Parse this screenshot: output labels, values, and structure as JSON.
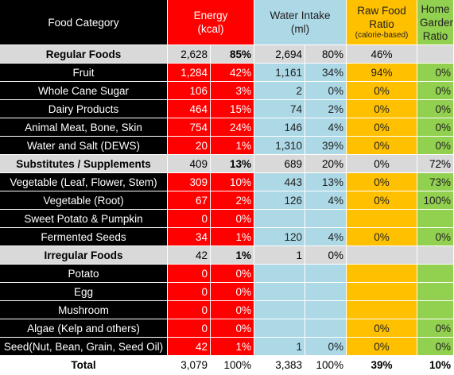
{
  "headers": {
    "category": "Food Category",
    "energy": "Energy",
    "energy_unit": "(kcal)",
    "water": "Water Intake",
    "water_unit": "(ml)",
    "raw": "Raw Food Ratio",
    "raw_note": "(calorie-based)",
    "garden": "Home Garden Ratio"
  },
  "rows": [
    {
      "name": "Regular Foods",
      "type": "group",
      "energy": "2,628",
      "energy_pct": "85%",
      "water": "2,694",
      "water_pct": "80%",
      "raw": "46%",
      "garden": ""
    },
    {
      "name": "Fruit",
      "type": "item",
      "energy": "1,284",
      "energy_pct": "42%",
      "water": "1,161",
      "water_pct": "34%",
      "raw": "94%",
      "garden": "0%"
    },
    {
      "name": "Whole Cane Sugar",
      "type": "item",
      "energy": "106",
      "energy_pct": "3%",
      "water": "2",
      "water_pct": "0%",
      "raw": "0%",
      "garden": "0%"
    },
    {
      "name": "Dairy Products",
      "type": "item",
      "energy": "464",
      "energy_pct": "15%",
      "water": "74",
      "water_pct": "2%",
      "raw": "0%",
      "garden": "0%"
    },
    {
      "name": "Animal Meat, Bone, Skin",
      "type": "item",
      "energy": "754",
      "energy_pct": "24%",
      "water": "146",
      "water_pct": "4%",
      "raw": "0%",
      "garden": "0%"
    },
    {
      "name": "Water and Salt (DEWS)",
      "type": "item",
      "energy": "20",
      "energy_pct": "1%",
      "water": "1,310",
      "water_pct": "39%",
      "raw": "0%",
      "garden": "0%"
    },
    {
      "name": "Substitutes / Supplements",
      "type": "group",
      "energy": "409",
      "energy_pct": "13%",
      "water": "689",
      "water_pct": "20%",
      "raw": "0%",
      "garden": "72%"
    },
    {
      "name": "Vegetable (Leaf, Flower, Stem)",
      "type": "item",
      "energy": "309",
      "energy_pct": "10%",
      "water": "443",
      "water_pct": "13%",
      "raw": "0%",
      "garden": "73%"
    },
    {
      "name": "Vegetable (Root)",
      "type": "item",
      "energy": "67",
      "energy_pct": "2%",
      "water": "126",
      "water_pct": "4%",
      "raw": "0%",
      "garden": "100%"
    },
    {
      "name": "Sweet Potato & Pumpkin",
      "type": "item",
      "energy": "0",
      "energy_pct": "0%",
      "water": "",
      "water_pct": "",
      "raw": "",
      "garden": ""
    },
    {
      "name": "Fermented Seeds",
      "type": "item",
      "energy": "34",
      "energy_pct": "1%",
      "water": "120",
      "water_pct": "4%",
      "raw": "0%",
      "garden": "0%"
    },
    {
      "name": "Irregular Foods",
      "type": "group",
      "energy": "42",
      "energy_pct": "1%",
      "water": "1",
      "water_pct": "0%",
      "raw": "",
      "garden": ""
    },
    {
      "name": "Potato",
      "type": "item",
      "energy": "0",
      "energy_pct": "0%",
      "water": "",
      "water_pct": "",
      "raw": "",
      "garden": ""
    },
    {
      "name": "Egg",
      "type": "item",
      "energy": "0",
      "energy_pct": "0%",
      "water": "",
      "water_pct": "",
      "raw": "",
      "garden": ""
    },
    {
      "name": "Mushroom",
      "type": "item",
      "energy": "0",
      "energy_pct": "0%",
      "water": "",
      "water_pct": "",
      "raw": "",
      "garden": ""
    },
    {
      "name": "Algae (Kelp and others)",
      "type": "item",
      "energy": "0",
      "energy_pct": "0%",
      "water": "",
      "water_pct": "",
      "raw": "0%",
      "garden": "0%"
    },
    {
      "name": "Seed(Nut, Bean, Grain, Seed Oil)",
      "type": "item",
      "energy": "42",
      "energy_pct": "1%",
      "water": "1",
      "water_pct": "0%",
      "raw": "0%",
      "garden": "0%"
    }
  ],
  "total": {
    "name": "Total",
    "energy": "3,079",
    "energy_pct": "100%",
    "water": "3,383",
    "water_pct": "100%",
    "raw": "39%",
    "garden": "10%"
  },
  "colors": {
    "energy": "#ff0000",
    "water": "#add8e6",
    "raw": "#ffc000",
    "garden": "#92d050",
    "group": "#d9d9d9",
    "category": "#000000"
  }
}
